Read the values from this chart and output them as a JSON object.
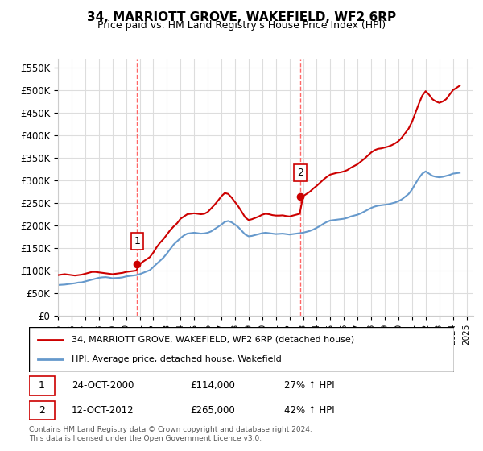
{
  "title": "34, MARRIOTT GROVE, WAKEFIELD, WF2 6RP",
  "subtitle": "Price paid vs. HM Land Registry's House Price Index (HPI)",
  "ylabel_ticks": [
    "£0",
    "£50K",
    "£100K",
    "£150K",
    "£200K",
    "£250K",
    "£300K",
    "£350K",
    "£400K",
    "£450K",
    "£500K",
    "£550K"
  ],
  "ytick_values": [
    0,
    50000,
    100000,
    150000,
    200000,
    250000,
    300000,
    350000,
    400000,
    450000,
    500000,
    550000
  ],
  "ylim": [
    0,
    570000
  ],
  "xlim_start": 1995.0,
  "xlim_end": 2025.5,
  "background_color": "#ffffff",
  "grid_color": "#dddddd",
  "sale1_x": 2000.81,
  "sale1_y": 114000,
  "sale1_label": "1",
  "sale1_date": "24-OCT-2000",
  "sale1_price": "£114,000",
  "sale1_hpi": "27% ↑ HPI",
  "sale2_x": 2012.79,
  "sale2_y": 265000,
  "sale2_label": "2",
  "sale2_date": "12-OCT-2012",
  "sale2_price": "£265,000",
  "sale2_hpi": "42% ↑ HPI",
  "vline_color": "#ff6666",
  "vline_style": "--",
  "red_line_color": "#cc0000",
  "blue_line_color": "#6699cc",
  "marker_color": "#cc0000",
  "legend_red_label": "34, MARRIOTT GROVE, WAKEFIELD, WF2 6RP (detached house)",
  "legend_blue_label": "HPI: Average price, detached house, Wakefield",
  "footer": "Contains HM Land Registry data © Crown copyright and database right 2024.\nThis data is licensed under the Open Government Licence v3.0.",
  "hpi_years": [
    1995,
    1995.25,
    1995.5,
    1995.75,
    1996,
    1996.25,
    1996.5,
    1996.75,
    1997,
    1997.25,
    1997.5,
    1997.75,
    1998,
    1998.25,
    1998.5,
    1998.75,
    1999,
    1999.25,
    1999.5,
    1999.75,
    2000,
    2000.25,
    2000.5,
    2000.75,
    2001,
    2001.25,
    2001.5,
    2001.75,
    2002,
    2002.25,
    2002.5,
    2002.75,
    2003,
    2003.25,
    2003.5,
    2003.75,
    2004,
    2004.25,
    2004.5,
    2004.75,
    2005,
    2005.25,
    2005.5,
    2005.75,
    2006,
    2006.25,
    2006.5,
    2006.75,
    2007,
    2007.25,
    2007.5,
    2007.75,
    2008,
    2008.25,
    2008.5,
    2008.75,
    2009,
    2009.25,
    2009.5,
    2009.75,
    2010,
    2010.25,
    2010.5,
    2010.75,
    2011,
    2011.25,
    2011.5,
    2011.75,
    2012,
    2012.25,
    2012.5,
    2012.75,
    2013,
    2013.25,
    2013.5,
    2013.75,
    2014,
    2014.25,
    2014.5,
    2014.75,
    2015,
    2015.25,
    2015.5,
    2015.75,
    2016,
    2016.25,
    2016.5,
    2016.75,
    2017,
    2017.25,
    2017.5,
    2017.75,
    2018,
    2018.25,
    2018.5,
    2018.75,
    2019,
    2019.25,
    2019.5,
    2019.75,
    2020,
    2020.25,
    2020.5,
    2020.75,
    2021,
    2021.25,
    2021.5,
    2021.75,
    2022,
    2022.25,
    2022.5,
    2022.75,
    2023,
    2023.25,
    2023.5,
    2023.75,
    2024,
    2024.25,
    2024.5
  ],
  "hpi_values": [
    68000,
    68500,
    69000,
    70000,
    71000,
    72000,
    73500,
    74000,
    76000,
    78000,
    80000,
    82000,
    84000,
    85000,
    85500,
    84500,
    83000,
    83500,
    84000,
    85000,
    87000,
    88000,
    89000,
    90000,
    92000,
    95000,
    98000,
    101000,
    108000,
    115000,
    122000,
    129000,
    138000,
    148000,
    158000,
    165000,
    172000,
    178000,
    182000,
    183000,
    184000,
    183000,
    182000,
    182500,
    184000,
    187000,
    192000,
    197000,
    202000,
    208000,
    210000,
    207000,
    202000,
    196000,
    188000,
    180000,
    176000,
    177000,
    179000,
    181000,
    183000,
    184000,
    183000,
    182000,
    181000,
    181500,
    182000,
    181000,
    180000,
    181000,
    182000,
    183000,
    184000,
    186000,
    188000,
    191000,
    195000,
    199000,
    204000,
    208000,
    211000,
    212000,
    213000,
    214000,
    215000,
    217000,
    220000,
    222000,
    224000,
    227000,
    231000,
    235000,
    239000,
    242000,
    244000,
    245000,
    246000,
    247000,
    249000,
    251000,
    254000,
    258000,
    264000,
    270000,
    280000,
    293000,
    305000,
    315000,
    320000,
    315000,
    310000,
    308000,
    307000,
    308000,
    310000,
    312000,
    315000,
    316000,
    317000
  ],
  "red_years": [
    1995,
    1995.25,
    1995.5,
    1995.75,
    1996,
    1996.25,
    1996.5,
    1996.75,
    1997,
    1997.25,
    1997.5,
    1997.75,
    1998,
    1998.25,
    1998.5,
    1998.75,
    1999,
    1999.25,
    1999.5,
    1999.75,
    2000,
    2000.25,
    2000.5,
    2000.75,
    2001,
    2001.25,
    2001.5,
    2001.75,
    2002,
    2002.25,
    2002.5,
    2002.75,
    2003,
    2003.25,
    2003.5,
    2003.75,
    2004,
    2004.25,
    2004.5,
    2004.75,
    2005,
    2005.25,
    2005.5,
    2005.75,
    2006,
    2006.25,
    2006.5,
    2006.75,
    2007,
    2007.25,
    2007.5,
    2007.75,
    2008,
    2008.25,
    2008.5,
    2008.75,
    2009,
    2009.25,
    2009.5,
    2009.75,
    2010,
    2010.25,
    2010.5,
    2010.75,
    2011,
    2011.25,
    2011.5,
    2011.75,
    2012,
    2012.25,
    2012.5,
    2012.75,
    2013,
    2013.25,
    2013.5,
    2013.75,
    2014,
    2014.25,
    2014.5,
    2014.75,
    2015,
    2015.25,
    2015.5,
    2015.75,
    2016,
    2016.25,
    2016.5,
    2016.75,
    2017,
    2017.25,
    2017.5,
    2017.75,
    2018,
    2018.25,
    2018.5,
    2018.75,
    2019,
    2019.25,
    2019.5,
    2019.75,
    2020,
    2020.25,
    2020.5,
    2020.75,
    2021,
    2021.25,
    2021.5,
    2021.75,
    2022,
    2022.25,
    2022.5,
    2022.75,
    2023,
    2023.25,
    2023.5,
    2023.75,
    2024,
    2024.25,
    2024.5
  ],
  "red_values": [
    90000,
    91000,
    92000,
    91000,
    90000,
    89000,
    90000,
    91000,
    93000,
    95000,
    97000,
    97000,
    96000,
    95000,
    94000,
    93000,
    92000,
    93000,
    94000,
    95000,
    97000,
    98000,
    99000,
    100000,
    114000,
    120000,
    125000,
    130000,
    140000,
    152000,
    162000,
    170000,
    180000,
    190000,
    198000,
    205000,
    215000,
    220000,
    225000,
    226000,
    227000,
    226000,
    225000,
    226000,
    230000,
    238000,
    246000,
    255000,
    265000,
    272000,
    270000,
    262000,
    252000,
    242000,
    230000,
    218000,
    212000,
    214000,
    217000,
    220000,
    224000,
    226000,
    225000,
    223000,
    222000,
    222000,
    222500,
    221000,
    220000,
    222000,
    224000,
    226000,
    265000,
    270000,
    275000,
    282000,
    288000,
    295000,
    302000,
    308000,
    313000,
    315000,
    317000,
    318000,
    320000,
    323000,
    328000,
    332000,
    336000,
    342000,
    348000,
    355000,
    362000,
    367000,
    370000,
    371000,
    373000,
    375000,
    378000,
    382000,
    387000,
    395000,
    405000,
    415000,
    430000,
    450000,
    470000,
    488000,
    498000,
    490000,
    480000,
    475000,
    472000,
    475000,
    480000,
    490000,
    500000,
    505000,
    510000
  ]
}
